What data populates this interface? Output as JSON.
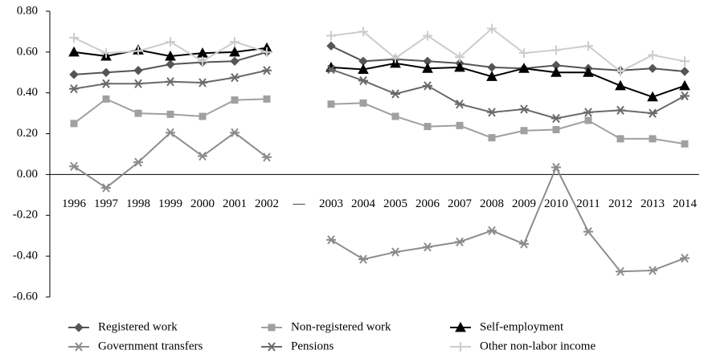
{
  "chart_data": {
    "type": "line",
    "categories": [
      "1996",
      "1997",
      "1998",
      "1999",
      "2000",
      "2001",
      "2002",
      "—",
      "2003",
      "2004",
      "2005",
      "2006",
      "2007",
      "2008",
      "2009",
      "2010",
      "2011",
      "2012",
      "2013",
      "2014"
    ],
    "series": [
      {
        "name": "Registered work",
        "color": "#555555",
        "marker": "diamond",
        "values": [
          0.49,
          0.5,
          0.51,
          0.54,
          0.55,
          0.555,
          0.6,
          null,
          0.63,
          0.555,
          0.565,
          0.555,
          0.545,
          0.525,
          0.52,
          0.535,
          0.52,
          0.51,
          0.52,
          0.505
        ]
      },
      {
        "name": "Non-registered work",
        "color": "#a0a0a0",
        "marker": "square",
        "values": [
          0.25,
          0.37,
          0.3,
          0.295,
          0.285,
          0.365,
          0.37,
          null,
          0.345,
          0.35,
          0.285,
          0.235,
          0.24,
          0.18,
          0.215,
          0.22,
          0.265,
          0.175,
          0.175,
          0.15
        ]
      },
      {
        "name": "Self-employment",
        "color": "#000000",
        "marker": "triangle",
        "values": [
          0.6,
          0.58,
          0.61,
          0.58,
          0.595,
          0.6,
          0.62,
          null,
          0.525,
          0.515,
          0.545,
          0.52,
          0.525,
          0.48,
          0.52,
          0.5,
          0.5,
          0.435,
          0.38,
          0.435
        ]
      },
      {
        "name": "Government transfers",
        "color": "#8c8c8c",
        "marker": "star",
        "values": [
          0.04,
          -0.065,
          0.06,
          0.205,
          0.09,
          0.205,
          0.085,
          null,
          -0.32,
          -0.415,
          -0.38,
          -0.355,
          -0.33,
          -0.275,
          -0.34,
          0.035,
          -0.28,
          -0.475,
          -0.47,
          -0.41
        ]
      },
      {
        "name": "Pensions",
        "color": "#6a6a6a",
        "marker": "star",
        "values": [
          0.42,
          0.445,
          0.445,
          0.455,
          0.45,
          0.475,
          0.51,
          null,
          0.515,
          0.46,
          0.395,
          0.435,
          0.345,
          0.305,
          0.32,
          0.275,
          0.305,
          0.315,
          0.3,
          0.385
        ]
      },
      {
        "name": "Other non-labor income",
        "color": "#cccccc",
        "marker": "plus",
        "values": [
          0.67,
          0.595,
          0.605,
          0.65,
          0.555,
          0.65,
          0.6,
          null,
          0.68,
          0.7,
          0.57,
          0.68,
          0.575,
          0.715,
          0.595,
          0.61,
          0.63,
          0.505,
          0.585,
          0.555
        ]
      }
    ],
    "ylim": [
      -0.6,
      0.8
    ],
    "yticks": [
      {
        "value": -0.6,
        "label": "-0.60"
      },
      {
        "value": -0.4,
        "label": "-0.40"
      },
      {
        "value": -0.2,
        "label": "-0.20"
      },
      {
        "value": 0,
        "label": "0.00"
      },
      {
        "value": 0.2,
        "label": "0.20"
      },
      {
        "value": 0.4,
        "label": "0.40"
      },
      {
        "value": 0.6,
        "label": "0.60"
      },
      {
        "value": 0.8,
        "label": "0.80"
      }
    ],
    "grid": false
  }
}
